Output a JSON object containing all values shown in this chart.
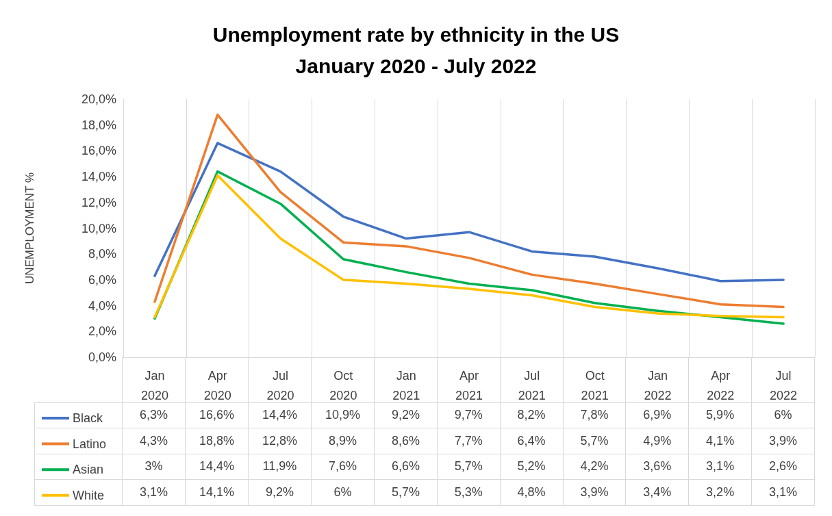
{
  "chart_data": {
    "type": "line",
    "title": "Unemployment rate by ethnicity in the US",
    "subtitle": "January 2020 - July 2022",
    "ylabel": "UNEMPLOYMENT %",
    "categories": [
      "Jan 2020",
      "Apr 2020",
      "Jul 2020",
      "Oct 2020",
      "Jan 2021",
      "Apr 2021",
      "Jul 2021",
      "Oct 2021",
      "Jan 2022",
      "Apr 2022",
      "Jul 2022"
    ],
    "series": [
      {
        "name": "Black",
        "color": "#4472c4",
        "values": [
          6.3,
          16.6,
          14.4,
          10.9,
          9.2,
          9.7,
          8.2,
          7.8,
          6.9,
          5.9,
          6
        ],
        "value_labels": [
          "6,3%",
          "16,6%",
          "14,4%",
          "10,9%",
          "9,2%",
          "9,7%",
          "8,2%",
          "7,8%",
          "6,9%",
          "5,9%",
          "6%"
        ]
      },
      {
        "name": "Latino",
        "color": "#ed7d31",
        "values": [
          4.3,
          18.8,
          12.8,
          8.9,
          8.6,
          7.7,
          6.4,
          5.7,
          4.9,
          4.1,
          3.9
        ],
        "value_labels": [
          "4,3%",
          "18,8%",
          "12,8%",
          "8,9%",
          "8,6%",
          "7,7%",
          "6,4%",
          "5,7%",
          "4,9%",
          "4,1%",
          "3,9%"
        ]
      },
      {
        "name": "Asian",
        "color": "#00b050",
        "values": [
          3,
          14.4,
          11.9,
          7.6,
          6.6,
          5.7,
          5.2,
          4.2,
          3.6,
          3.1,
          2.6
        ],
        "value_labels": [
          "3%",
          "14,4%",
          "11,9%",
          "7,6%",
          "6,6%",
          "5,7%",
          "5,2%",
          "4,2%",
          "3,6%",
          "3,1%",
          "2,6%"
        ]
      },
      {
        "name": "White",
        "color": "#ffc000",
        "values": [
          3.1,
          14.1,
          9.2,
          6,
          5.7,
          5.3,
          4.8,
          3.9,
          3.4,
          3.2,
          3.1
        ],
        "value_labels": [
          "3,1%",
          "14,1%",
          "9,2%",
          "6%",
          "5,7%",
          "5,3%",
          "4,8%",
          "3,9%",
          "3,4%",
          "3,2%",
          "3,1%"
        ]
      }
    ],
    "ylim": [
      0,
      20
    ],
    "yticks": [
      {
        "value": 0,
        "label": "0,0%"
      },
      {
        "value": 2,
        "label": "2,0%"
      },
      {
        "value": 4,
        "label": "4,0%"
      },
      {
        "value": 6,
        "label": "6,0%"
      },
      {
        "value": 8,
        "label": "8,0%"
      },
      {
        "value": 10,
        "label": "10,0%"
      },
      {
        "value": 12,
        "label": "12,0%"
      },
      {
        "value": 14,
        "label": "14,0%"
      },
      {
        "value": 16,
        "label": "16,0%"
      },
      {
        "value": 18,
        "label": "18,0%"
      },
      {
        "value": 20,
        "label": "20,0%"
      }
    ],
    "grid": "x",
    "legend": "bottom",
    "marker": "none"
  }
}
